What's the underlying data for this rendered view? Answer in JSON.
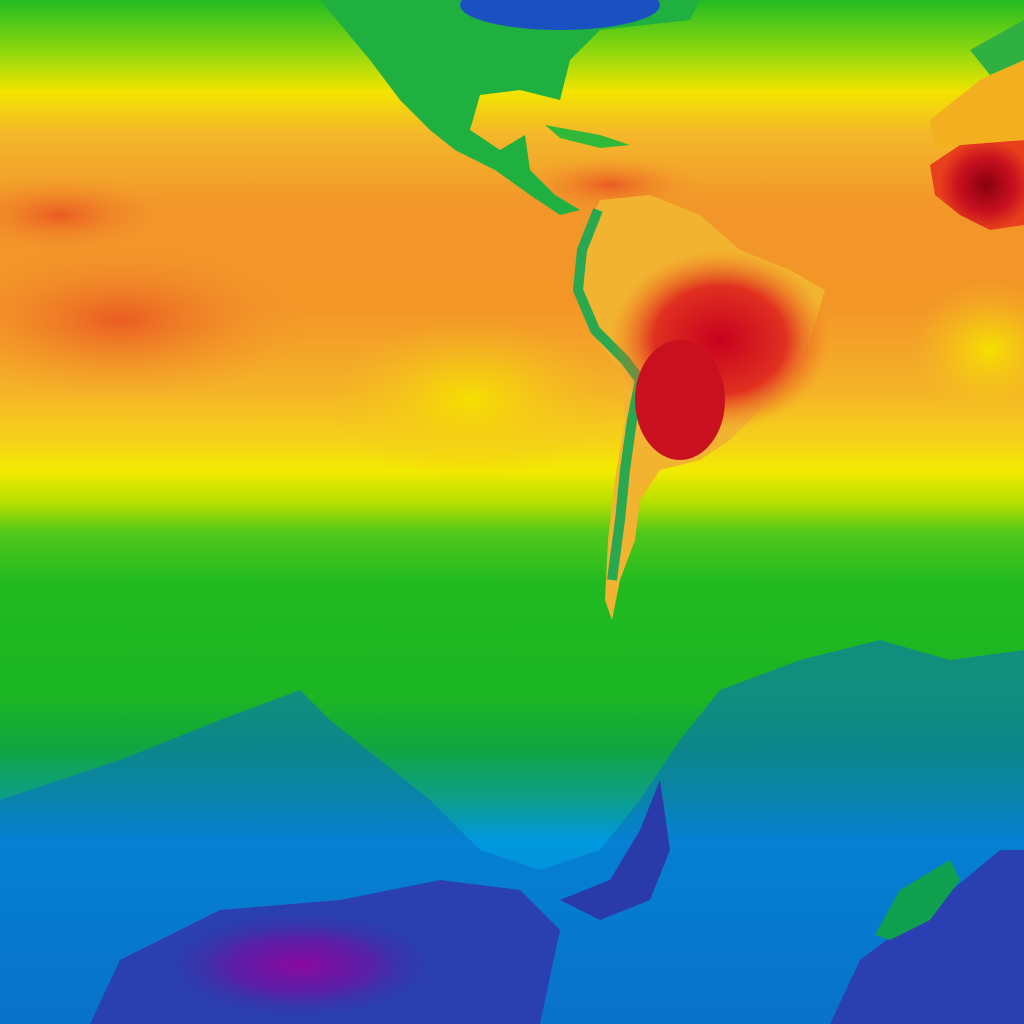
{
  "map": {
    "kind": "temperature-heatmap",
    "palette": {
      "hot_extreme": "#b0001a",
      "hot": "#e8401c",
      "warm": "#f07a22",
      "mild_warm": "#f5b324",
      "yellow": "#f5e800",
      "yellow_green": "#b8e000",
      "green": "#1fb81f",
      "teal_green": "#12a84a",
      "cold": "#0096e0",
      "colder": "#0a6ec8",
      "very_cold": "#2a3aa8",
      "extreme_cold": "#7a10a0"
    }
  }
}
